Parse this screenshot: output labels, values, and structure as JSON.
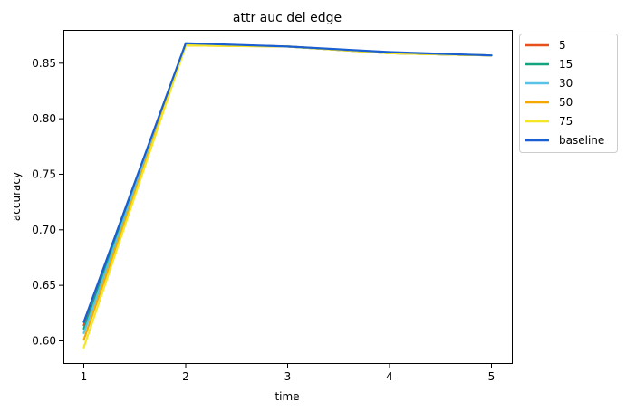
{
  "chart_data": {
    "type": "line",
    "title": "attr auc del edge",
    "xlabel": "time",
    "ylabel": "accuracy",
    "x": [
      1,
      2,
      3,
      4,
      5
    ],
    "xticks": [
      "1",
      "2",
      "3",
      "4",
      "5"
    ],
    "yticks": [
      "0.60",
      "0.65",
      "0.70",
      "0.75",
      "0.80",
      "0.85"
    ],
    "ytick_values": [
      0.6,
      0.65,
      0.7,
      0.75,
      0.8,
      0.85
    ],
    "xlim": [
      0.8,
      5.2
    ],
    "ylim": [
      0.58,
      0.88
    ],
    "grid": false,
    "legend_position": "outside-top-right",
    "series": [
      {
        "name": "5",
        "color": "#e8501e",
        "values": [
          0.614,
          0.867,
          0.865,
          0.859,
          0.857
        ]
      },
      {
        "name": "15",
        "color": "#12a37f",
        "values": [
          0.611,
          0.867,
          0.865,
          0.859,
          0.857
        ]
      },
      {
        "name": "30",
        "color": "#5bc2e7",
        "values": [
          0.607,
          0.867,
          0.865,
          0.859,
          0.857
        ]
      },
      {
        "name": "50",
        "color": "#f4a800",
        "values": [
          0.601,
          0.866,
          0.865,
          0.859,
          0.857
        ]
      },
      {
        "name": "75",
        "color": "#f5e625",
        "values": [
          0.594,
          0.866,
          0.865,
          0.859,
          0.857
        ]
      },
      {
        "name": "baseline",
        "color": "#1a5fd1",
        "values": [
          0.617,
          0.868,
          0.865,
          0.86,
          0.857
        ]
      }
    ]
  }
}
